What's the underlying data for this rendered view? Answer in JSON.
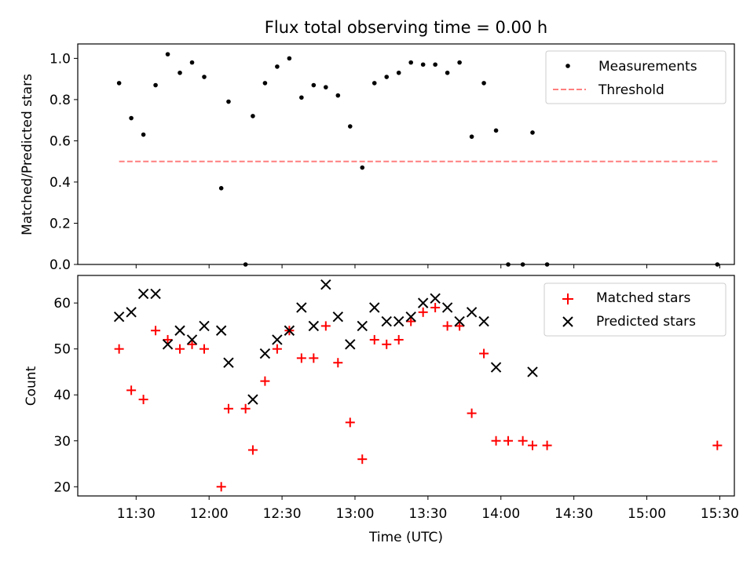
{
  "chart_data": [
    {
      "type": "scatter",
      "title": "Flux total observing time = 0.00 h",
      "xlabel": "",
      "ylabel": "Matched/Predicted stars",
      "ylim": [
        0,
        1.07
      ],
      "yticks": [
        0.0,
        0.2,
        0.4,
        0.6,
        0.8,
        1.0
      ],
      "ytick_labels": [
        "0.0",
        "0.2",
        "0.4",
        "0.6",
        "0.8",
        "1.0"
      ],
      "legend_position": "top-right",
      "grid": false,
      "series": [
        {
          "name": "Measurements",
          "marker": "dot",
          "color": "#000000",
          "x": [
            "11:23",
            "11:28",
            "11:33",
            "11:38",
            "11:43",
            "11:48",
            "11:53",
            "11:58",
            "12:05",
            "12:08",
            "12:15",
            "12:18",
            "12:23",
            "12:28",
            "12:33",
            "12:38",
            "12:43",
            "12:48",
            "12:53",
            "12:58",
            "13:03",
            "13:08",
            "13:13",
            "13:18",
            "13:23",
            "13:28",
            "13:33",
            "13:38",
            "13:43",
            "13:48",
            "13:53",
            "13:58",
            "14:03",
            "14:09",
            "14:13",
            "14:19",
            "15:29"
          ],
          "y": [
            0.88,
            0.71,
            0.63,
            0.87,
            1.02,
            0.93,
            0.98,
            0.91,
            0.37,
            0.79,
            0.0,
            0.72,
            0.88,
            0.96,
            1.0,
            0.81,
            0.87,
            0.86,
            0.82,
            0.67,
            0.47,
            0.88,
            0.91,
            0.93,
            0.98,
            0.97,
            0.97,
            0.93,
            0.98,
            0.62,
            0.88,
            0.65,
            0.0,
            0.0,
            0.64,
            0.0,
            0.0
          ]
        },
        {
          "name": "Threshold",
          "style": "dashed",
          "color": "#ff7f7f",
          "x": [
            "11:23",
            "15:29"
          ],
          "y": [
            0.5,
            0.5
          ]
        }
      ]
    },
    {
      "type": "scatter",
      "title": "",
      "xlabel": "Time (UTC)",
      "ylabel": "Count",
      "ylim": [
        18,
        66
      ],
      "xlim": [
        "11:06",
        "15:36"
      ],
      "yticks": [
        20,
        30,
        40,
        50,
        60
      ],
      "ytick_labels": [
        "20",
        "30",
        "40",
        "50",
        "60"
      ],
      "xticks": [
        "11:30",
        "12:00",
        "12:30",
        "13:00",
        "13:30",
        "14:00",
        "14:30",
        "15:00",
        "15:30"
      ],
      "xtick_labels": [
        "11:30",
        "12:00",
        "12:30",
        "13:00",
        "13:30",
        "14:00",
        "14:30",
        "15:00",
        "15:30"
      ],
      "legend_position": "top-right",
      "grid": false,
      "series": [
        {
          "name": "Matched stars",
          "marker": "plus",
          "color": "#ff0000",
          "x": [
            "11:23",
            "11:28",
            "11:33",
            "11:38",
            "11:43",
            "11:48",
            "11:53",
            "11:58",
            "12:05",
            "12:08",
            "12:15",
            "12:18",
            "12:23",
            "12:28",
            "12:33",
            "12:38",
            "12:43",
            "12:48",
            "12:53",
            "12:58",
            "13:03",
            "13:08",
            "13:13",
            "13:18",
            "13:23",
            "13:28",
            "13:33",
            "13:38",
            "13:43",
            "13:48",
            "13:53",
            "13:58",
            "14:03",
            "14:09",
            "14:13",
            "14:19",
            "15:29"
          ],
          "y": [
            50,
            41,
            39,
            54,
            52,
            50,
            51,
            50,
            20,
            37,
            37,
            28,
            43,
            50,
            54,
            48,
            48,
            55,
            47,
            34,
            26,
            52,
            51,
            52,
            56,
            58,
            59,
            55,
            55,
            36,
            49,
            30,
            30,
            30,
            29,
            29,
            29
          ]
        },
        {
          "name": "Predicted stars",
          "marker": "x",
          "color": "#000000",
          "x": [
            "11:23",
            "11:28",
            "11:33",
            "11:38",
            "11:43",
            "11:48",
            "11:53",
            "11:58",
            "12:05",
            "12:08",
            "12:18",
            "12:23",
            "12:28",
            "12:33",
            "12:38",
            "12:43",
            "12:48",
            "12:53",
            "12:58",
            "13:03",
            "13:08",
            "13:13",
            "13:18",
            "13:23",
            "13:28",
            "13:33",
            "13:38",
            "13:43",
            "13:48",
            "13:53",
            "13:58",
            "14:13"
          ],
          "y": [
            57,
            58,
            62,
            62,
            51,
            54,
            52,
            55,
            54,
            47,
            39,
            49,
            52,
            54,
            59,
            55,
            64,
            57,
            51,
            55,
            59,
            56,
            56,
            57,
            60,
            61,
            59,
            56,
            58,
            56,
            46,
            45
          ]
        }
      ]
    }
  ]
}
